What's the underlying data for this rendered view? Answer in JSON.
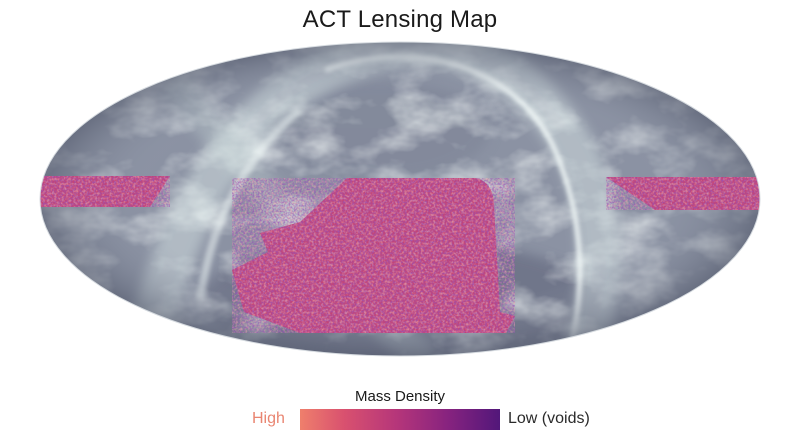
{
  "title": "ACT Lensing Map",
  "colorbar": {
    "title": "Mass Density",
    "high_label": "High",
    "low_label": "Low (voids)",
    "high_color": "#ef7f6c",
    "low_color": "#52177a"
  },
  "colors": {
    "sky_background": "#8b92a3",
    "dust_bright": "#eaf4f2",
    "lensing_fill": "#c24478"
  }
}
